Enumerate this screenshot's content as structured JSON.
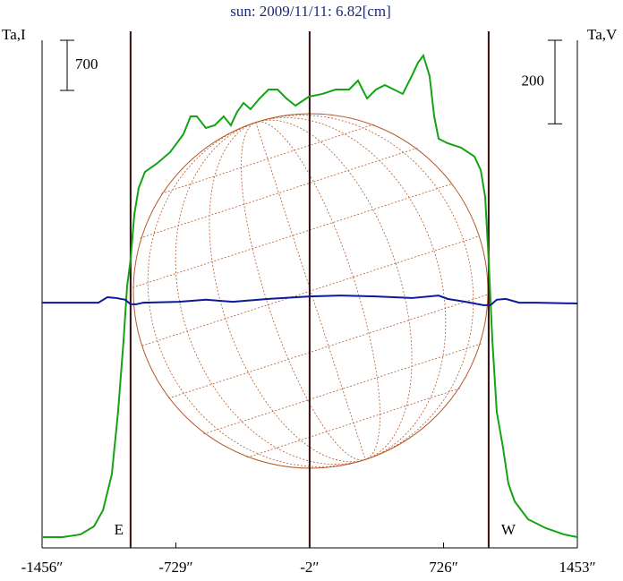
{
  "chart_data": {
    "type": "line",
    "title": "sun: 2009/11/11: 6.82[cm]",
    "y_label": "Ta,I",
    "y2_label": "Ta,V",
    "xlim": [
      -1456,
      1453
    ],
    "xticks": [
      {
        "value": -1456,
        "label": "-1456″"
      },
      {
        "value": -729,
        "label": "-729″"
      },
      {
        "value": -2,
        "label": "-2″"
      },
      {
        "value": 726,
        "label": "726″"
      },
      {
        "value": 1453,
        "label": "1453″"
      }
    ],
    "ylim": [
      0,
      7000
    ],
    "y2lim": [
      -600,
      600
    ],
    "y_scale_bar": 700,
    "y2_scale_bar": 200,
    "vlines": [
      -975,
      -2,
      971
    ],
    "limb_labels": [
      "E",
      "W"
    ],
    "series": [
      {
        "name": "Ta,I",
        "color": "#13a313",
        "x": [
          -1456,
          -1344,
          -1247,
          -1174,
          -1125,
          -1077,
          -1043,
          -1013,
          -994,
          -975,
          -955,
          -931,
          -897,
          -834,
          -760,
          -688,
          -649,
          -615,
          -566,
          -518,
          -469,
          -430,
          -396,
          -361,
          -323,
          -274,
          -225,
          -176,
          -128,
          -79,
          -6,
          67,
          140,
          213,
          261,
          310,
          359,
          407,
          456,
          504,
          553,
          587,
          616,
          650,
          675,
          699,
          748,
          821,
          894,
          928,
          952,
          971,
          991,
          1015,
          1049,
          1078,
          1112,
          1185,
          1282,
          1380,
          1453
        ],
        "values": [
          150,
          150,
          188,
          300,
          525,
          1025,
          1900,
          2900,
          3650,
          4025,
          4650,
          5025,
          5250,
          5363,
          5525,
          5775,
          6025,
          6025,
          5863,
          5900,
          6025,
          5900,
          6088,
          6213,
          6125,
          6275,
          6400,
          6400,
          6275,
          6175,
          6300,
          6338,
          6400,
          6400,
          6525,
          6275,
          6400,
          6463,
          6400,
          6338,
          6588,
          6775,
          6875,
          6588,
          6025,
          5713,
          5650,
          5588,
          5463,
          5275,
          4900,
          4025,
          2900,
          1900,
          1400,
          900,
          650,
          400,
          275,
          188,
          150
        ]
      },
      {
        "name": "Ta,V",
        "color": "#0a1a9a",
        "axis": "y2",
        "x": [
          -1456,
          -1150,
          -1101,
          -1052,
          -1004,
          -975,
          -945,
          -906,
          -712,
          -566,
          -420,
          -225,
          -2,
          164,
          358,
          553,
          699,
          748,
          845,
          942,
          981,
          1015,
          1064,
          1137,
          1234,
          1453
        ],
        "values": [
          -13,
          -13,
          0,
          -2,
          -6,
          -17,
          -17,
          -13,
          -11,
          -6,
          -11,
          -4,
          2,
          4,
          2,
          -2,
          4,
          -4,
          -11,
          -19,
          -19,
          -6,
          -4,
          -13,
          -13,
          -15
        ]
      }
    ]
  }
}
